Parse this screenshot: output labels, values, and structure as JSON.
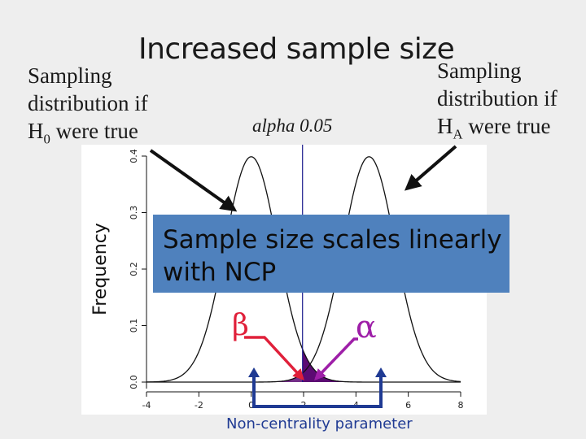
{
  "title": "Increased sample size",
  "h0_label": {
    "line1": "Sampling",
    "line2": "distribution if",
    "line3_pre": "H",
    "line3_sub": "0",
    "line3_post": " were true"
  },
  "ha_label": {
    "line1": "Sampling",
    "line2": "distribution if",
    "line3_pre": "H",
    "line3_sub": "A",
    "line3_post": " were true"
  },
  "alpha_label": "alpha 0.05",
  "callout": {
    "line1": "Sample size scales linearly",
    "line2": "with NCP"
  },
  "beta_symbol": "β",
  "alpha_symbol": "α",
  "ncp_label": "Non-centrality parameter",
  "colors": {
    "callout": "#4f81bd",
    "beta_arrow": "#e0203a",
    "alpha_arrow": "#9e1fa8",
    "ncp_bracket": "#1f3a93",
    "alpha_region": "#5c0a73",
    "threshold_line": "#1a1a8c"
  },
  "chart_data": {
    "type": "line",
    "ylabel": "Frequency",
    "xlim": [
      -4,
      8
    ],
    "ylim": [
      0,
      0.4
    ],
    "x_ticks": [
      "-4",
      "-2",
      "0",
      "2",
      "4",
      "6",
      "8"
    ],
    "y_ticks": [
      "0.0",
      "0.1",
      "0.2",
      "0.3",
      "0.4"
    ],
    "series": [
      {
        "distribution": "normal",
        "mean": 0,
        "sd": 1
      },
      {
        "distribution": "normal",
        "mean": 4.5,
        "sd": 1
      }
    ],
    "critical_value": 1.96,
    "ncp": 4.5
  }
}
